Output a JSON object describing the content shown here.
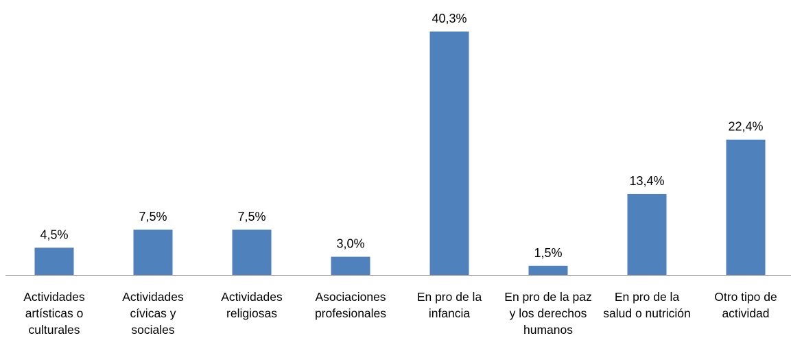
{
  "chart_data": {
    "type": "bar",
    "categories": [
      "Actividades artísticas o culturales",
      "Actividades cívicas y sociales",
      "Actividades religiosas",
      "Asociaciones profesionales",
      "En pro de la infancia",
      "En pro de la paz y los derechos humanos",
      "En pro de la salud o nutrición",
      "Otro tipo de actividad"
    ],
    "values": [
      4.5,
      7.5,
      7.5,
      3.0,
      40.3,
      1.5,
      13.4,
      22.4
    ],
    "value_labels": [
      "4,5%",
      "7,5%",
      "7,5%",
      "3,0%",
      "40,3%",
      "1,5%",
      "13,4%",
      "22,4%"
    ],
    "color": "#4f81bd"
  }
}
